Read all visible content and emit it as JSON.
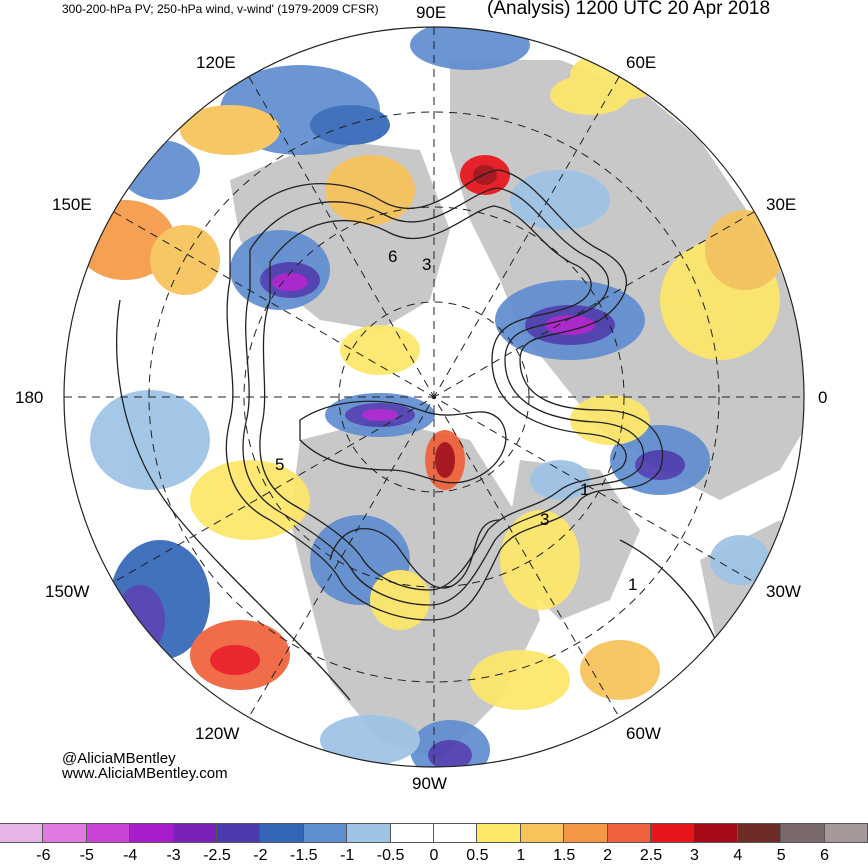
{
  "header": {
    "left_title": "300-200-hPa PV; 250-hPa wind, v-wind' (1979-2009 CFSR)",
    "right_title": "(Analysis) 1200 UTC 20 Apr 2018"
  },
  "credits": {
    "handle": "@AliciaMBentley",
    "website": "www.AliciaMBentley.com"
  },
  "longitude_labels": {
    "lon_90E": "90E",
    "lon_60E": "60E",
    "lon_30E": "30E",
    "lon_0": "0",
    "lon_30W": "30W",
    "lon_60W": "60W",
    "lon_90W": "90W",
    "lon_120W": "120W",
    "lon_150W": "150W",
    "lon_180": "180",
    "lon_150E": "150E",
    "lon_120E": "120E"
  },
  "pv_contour_labels": [
    "1",
    "3",
    "5",
    "6"
  ],
  "colorbar": {
    "ticks": [
      "-6",
      "-5",
      "-4",
      "-3",
      "-2.5",
      "-2",
      "-1.5",
      "-1",
      "-0.5",
      "0",
      "0.5",
      "1",
      "1.5",
      "2",
      "2.5",
      "3",
      "4",
      "5",
      "6"
    ],
    "colors": [
      "#e6b4e6",
      "#e07ae0",
      "#cc44d6",
      "#a81ccc",
      "#7a22b8",
      "#4a3aae",
      "#3466b8",
      "#5f8ed0",
      "#9dc3e6",
      "#ffffff",
      "#ffffff",
      "#fde768",
      "#f7c35a",
      "#f59845",
      "#f0603a",
      "#e8151d",
      "#a50b16",
      "#6e2c28",
      "#7a6a6a",
      "#a69898"
    ]
  },
  "colors": {
    "land": "#c8c8c8",
    "ocean": "#ffffff",
    "positive_anomaly": "#f59845",
    "negative_anomaly": "#3466b8"
  }
}
